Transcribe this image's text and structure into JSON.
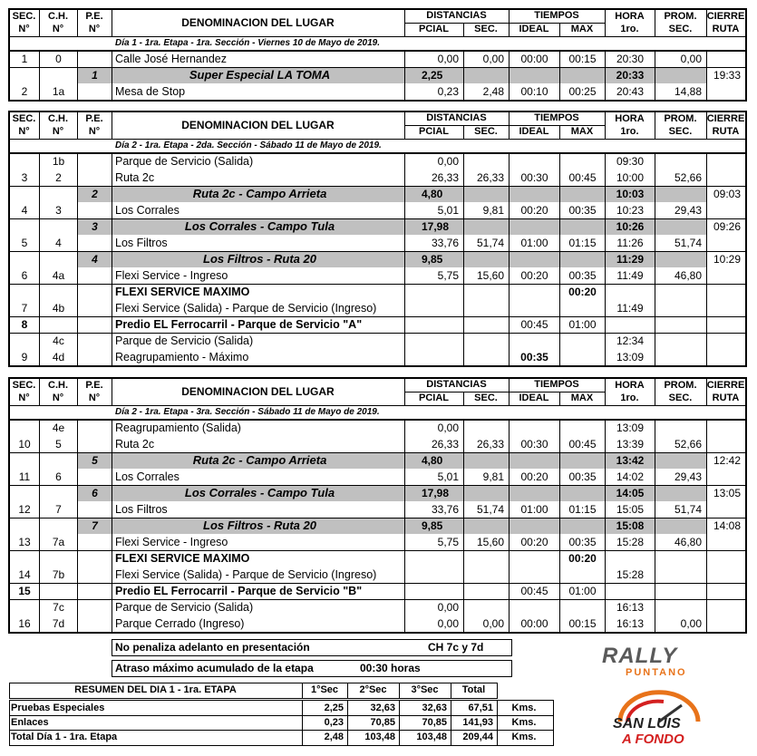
{
  "table_header": {
    "sec": [
      "SEC.",
      "N°"
    ],
    "ch": [
      "C.H.",
      "N°"
    ],
    "pe": [
      "P.E.",
      "N°"
    ],
    "name": "DENOMINACION DEL LUGAR",
    "distancias": "DISTANCIAS",
    "pcial": "PCIAL",
    "dsec": "SEC.",
    "tiempos": "TIEMPOS",
    "ideal": "IDEAL",
    "max": "MAX",
    "hora": [
      "HORA",
      "1ro."
    ],
    "prom": [
      "PROM.",
      "SEC."
    ],
    "cierre": [
      "CIERRE",
      "RUTA"
    ]
  },
  "sections": [
    {
      "info": "Día  1 - 1ra. Etapa - 1ra. Sección - Viernes 10 de Mayo de 2019.",
      "rows": [
        [
          {
            "cells": [
              "1",
              "0",
              null,
              "Calle José Hernandez",
              "0,00",
              "0,00",
              "00:00",
              "00:15",
              "20:30",
              "0,00",
              null
            ]
          }
        ],
        [
          {
            "cells": [
              null,
              null,
              "1",
              "Super Especial LA TOMA",
              "2,25",
              null,
              null,
              null,
              "20:33",
              null,
              "19:33"
            ],
            "special": true
          },
          {
            "cells": [
              "2",
              "1a",
              null,
              "Mesa de Stop",
              "0,23",
              "2,48",
              "00:10",
              "00:25",
              "20:43",
              "14,88",
              null
            ]
          }
        ]
      ]
    },
    {
      "info": "Día  2 - 1ra. Etapa - 2da. Sección - Sábado 11 de Mayo de 2019.",
      "rows": [
        [
          {
            "cells": [
              null,
              "1b",
              null,
              "Parque de Servicio (Salida)",
              "0,00",
              null,
              null,
              null,
              "09:30",
              null,
              null
            ]
          },
          {
            "cells": [
              "3",
              "2",
              null,
              "Ruta 2c",
              "26,33",
              "26,33",
              "00:30",
              "00:45",
              "10:00",
              "52,66",
              null
            ]
          }
        ],
        [
          {
            "cells": [
              null,
              null,
              "2",
              "Ruta 2c - Campo Arrieta",
              "4,80",
              null,
              null,
              null,
              "10:03",
              null,
              "09:03"
            ],
            "special": true
          },
          {
            "cells": [
              "4",
              "3",
              null,
              "Los Corrales",
              "5,01",
              "9,81",
              "00:20",
              "00:35",
              "10:23",
              "29,43",
              null
            ]
          }
        ],
        [
          {
            "cells": [
              null,
              null,
              "3",
              "Los Corrales - Campo Tula",
              "17,98",
              null,
              null,
              null,
              "10:26",
              null,
              "09:26"
            ],
            "special": true
          },
          {
            "cells": [
              "5",
              "4",
              null,
              "Los Filtros",
              "33,76",
              "51,74",
              "01:00",
              "01:15",
              "11:26",
              "51,74",
              null
            ]
          }
        ],
        [
          {
            "cells": [
              null,
              null,
              "4",
              "Los Filtros - Ruta 20",
              "9,85",
              null,
              null,
              null,
              "11:29",
              null,
              "10:29"
            ],
            "special": true
          },
          {
            "cells": [
              "6",
              "4a",
              null,
              "Flexi Service - Ingreso",
              "5,75",
              "15,60",
              "00:20",
              "00:35",
              "11:49",
              "46,80",
              null
            ]
          }
        ],
        [
          {
            "cells": [
              null,
              null,
              null,
              "FLEXI SERVICE MAXIMO",
              null,
              null,
              null,
              "00:20",
              null,
              null,
              null
            ],
            "bold": [
              3,
              7
            ]
          },
          {
            "cells": [
              "7",
              "4b",
              null,
              "Flexi Service (Salida) - Parque de Servicio (Ingreso)",
              null,
              null,
              null,
              null,
              "11:49",
              null,
              null
            ]
          }
        ],
        [
          {
            "cells": [
              "8",
              null,
              null,
              "Predio EL Ferrocarril - Parque de Servicio \"A\"",
              null,
              null,
              "00:45",
              "01:00",
              null,
              null,
              null
            ],
            "bold": [
              0,
              3
            ]
          }
        ],
        [
          {
            "cells": [
              null,
              "4c",
              null,
              "Parque de Servicio (Salida)",
              null,
              null,
              null,
              null,
              "12:34",
              null,
              null
            ]
          },
          {
            "cells": [
              "9",
              "4d",
              null,
              "Reagrupamiento - Máximo",
              null,
              null,
              "00:35",
              null,
              "13:09",
              null,
              null
            ],
            "bold": [
              6
            ]
          }
        ]
      ]
    },
    {
      "info": "Día 2 - 1ra. Etapa - 3ra. Sección - Sábado 11 de Mayo de 2019.",
      "rows": [
        [
          {
            "cells": [
              null,
              "4e",
              null,
              "Reagrupamiento (Salida)",
              "0,00",
              null,
              null,
              null,
              "13:09",
              null,
              null
            ]
          },
          {
            "cells": [
              "10",
              "5",
              null,
              "Ruta 2c",
              "26,33",
              "26,33",
              "00:30",
              "00:45",
              "13:39",
              "52,66",
              null
            ]
          }
        ],
        [
          {
            "cells": [
              null,
              null,
              "5",
              "Ruta 2c - Campo Arrieta",
              "4,80",
              null,
              null,
              null,
              "13:42",
              null,
              "12:42"
            ],
            "special": true
          },
          {
            "cells": [
              "11",
              "6",
              null,
              "Los Corrales",
              "5,01",
              "9,81",
              "00:20",
              "00:35",
              "14:02",
              "29,43",
              null
            ]
          }
        ],
        [
          {
            "cells": [
              null,
              null,
              "6",
              "Los Corrales - Campo Tula",
              "17,98",
              null,
              null,
              null,
              "14:05",
              null,
              "13:05"
            ],
            "special": true
          },
          {
            "cells": [
              "12",
              "7",
              null,
              "Los Filtros",
              "33,76",
              "51,74",
              "01:00",
              "01:15",
              "15:05",
              "51,74",
              null
            ]
          }
        ],
        [
          {
            "cells": [
              null,
              null,
              "7",
              "Los Filtros - Ruta 20",
              "9,85",
              null,
              null,
              null,
              "15:08",
              null,
              "14:08"
            ],
            "special": true
          },
          {
            "cells": [
              "13",
              "7a",
              null,
              "Flexi Service - Ingreso",
              "5,75",
              "15,60",
              "00:20",
              "00:35",
              "15:28",
              "46,80",
              null
            ]
          }
        ],
        [
          {
            "cells": [
              null,
              null,
              null,
              "FLEXI SERVICE MAXIMO",
              null,
              null,
              null,
              "00:20",
              null,
              null,
              null
            ],
            "bold": [
              3,
              7
            ]
          },
          {
            "cells": [
              "14",
              "7b",
              null,
              "Flexi Service (Salida) - Parque de Servicio (Ingreso)",
              null,
              null,
              null,
              null,
              "15:28",
              null,
              null
            ]
          }
        ],
        [
          {
            "cells": [
              "15",
              null,
              null,
              "Predio EL Ferrocarril - Parque de Servicio \"B\"",
              null,
              null,
              "00:45",
              "01:00",
              null,
              null,
              null
            ],
            "bold": [
              0,
              3
            ]
          }
        ],
        [
          {
            "cells": [
              null,
              "7c",
              null,
              "Parque de Servicio (Salida)",
              "0,00",
              null,
              null,
              null,
              "16:13",
              null,
              null
            ]
          },
          {
            "cells": [
              "16",
              "7d",
              null,
              "Parque Cerrado (Ingreso)",
              "0,00",
              "0,00",
              "00:00",
              "00:15",
              "16:13",
              "0,00",
              null
            ]
          }
        ]
      ]
    }
  ],
  "notes": [
    {
      "label": "No penaliza adelanto en presentación",
      "value": "CH 7c y 7d"
    },
    {
      "label": "Atraso máximo acumulado de la etapa",
      "value": "00:30 horas"
    }
  ],
  "summary": {
    "header": [
      "RESUMEN DEL  DIA 1 - 1ra. ETAPA",
      "1°Sec",
      "2°Sec",
      "3°Sec",
      "Total"
    ],
    "rows": [
      [
        "Pruebas Especiales",
        "2,25",
        "32,63",
        "32,63",
        "67,51",
        "Kms."
      ],
      [
        "Enlaces",
        "0,23",
        "70,85",
        "70,85",
        "141,93",
        "Kms."
      ],
      [
        "Total Día 1 - 1ra. Etapa",
        "2,48",
        "103,48",
        "103,48",
        "209,44",
        "Kms."
      ]
    ]
  },
  "logos": {
    "rally": "RALLY",
    "puntano": "PUNTANO",
    "san_luis": "SAN LUIS",
    "a_fondo": "A FONDO"
  }
}
